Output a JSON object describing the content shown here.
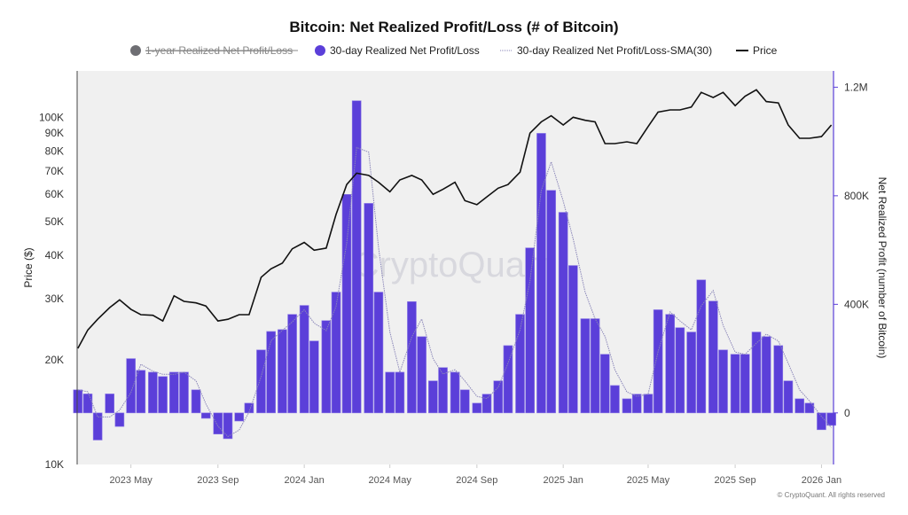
{
  "chart_data": {
    "type": "bar+line",
    "title": "Bitcoin: Net Realized Profit/Loss (# of Bitcoin)",
    "legend": {
      "placement": "top",
      "items": [
        {
          "label": "1-year Realized Net Profit/Loss",
          "color": "#6e6e73",
          "hidden": true
        },
        {
          "label": "30-day Realized Net Profit/Loss",
          "color": "#5b3fd9"
        },
        {
          "label": "30-day Realized Net Profit/Loss-SMA(30)",
          "color": "#8a86b8"
        },
        {
          "label": "Price",
          "color": "#111111"
        }
      ]
    },
    "ylabel_left": "Price ($)",
    "ylabel_right": "Net Realized Profit (number of Bitcoin)",
    "y_left": {
      "scale": "log",
      "range": [
        10000,
        136000
      ],
      "ticks": [
        10000,
        20000,
        30000,
        40000,
        50000,
        60000,
        70000,
        80000,
        90000,
        100000
      ],
      "tick_labels": [
        "10K",
        "20K",
        "30K",
        "40K",
        "50K",
        "60K",
        "70K",
        "80K",
        "90K",
        "100K"
      ]
    },
    "y_right": {
      "scale": "linear",
      "range": [
        -190000,
        1260000
      ],
      "ticks": [
        0,
        400000,
        800000,
        1200000
      ],
      "tick_labels": [
        "0",
        "400K",
        "800K",
        "1.2M"
      ]
    },
    "x_range": [
      "2023-02-14",
      "2026-01-18"
    ],
    "x_ticks": [
      "2023-05-01",
      "2023-09-01",
      "2024-01-01",
      "2024-05-01",
      "2024-09-01",
      "2025-01-01",
      "2025-05-01",
      "2025-09-01",
      "2026-01-01"
    ],
    "x_tick_labels": [
      "2023 May",
      "2023 Sep",
      "2024 Jan",
      "2024 May",
      "2024 Sep",
      "2025 Jan",
      "2025 May",
      "2025 Sep",
      "2026 Jan"
    ],
    "grid": false,
    "watermark": "CryptoQuant",
    "credit": "© CryptoQuant. All rights reserved",
    "dates": [
      "2023-02-15",
      "2023-03-01",
      "2023-03-15",
      "2023-04-01",
      "2023-04-15",
      "2023-05-01",
      "2023-05-15",
      "2023-06-01",
      "2023-06-15",
      "2023-07-01",
      "2023-07-15",
      "2023-08-01",
      "2023-08-15",
      "2023-09-01",
      "2023-09-15",
      "2023-10-01",
      "2023-10-15",
      "2023-11-01",
      "2023-11-15",
      "2023-12-01",
      "2023-12-15",
      "2024-01-01",
      "2024-01-15",
      "2024-02-01",
      "2024-02-15",
      "2024-03-01",
      "2024-03-15",
      "2024-04-01",
      "2024-04-15",
      "2024-05-01",
      "2024-05-15",
      "2024-06-01",
      "2024-06-15",
      "2024-07-01",
      "2024-07-15",
      "2024-08-01",
      "2024-08-15",
      "2024-09-01",
      "2024-09-15",
      "2024-10-01",
      "2024-10-15",
      "2024-11-01",
      "2024-11-15",
      "2024-12-01",
      "2024-12-15",
      "2025-01-01",
      "2025-01-15",
      "2025-02-01",
      "2025-02-15",
      "2025-03-01",
      "2025-03-15",
      "2025-04-01",
      "2025-04-15",
      "2025-05-01",
      "2025-05-15",
      "2025-06-01",
      "2025-06-15",
      "2025-07-01",
      "2025-07-15",
      "2025-08-01",
      "2025-08-15",
      "2025-09-01",
      "2025-09-15",
      "2025-10-01",
      "2025-10-15",
      "2025-11-01",
      "2025-11-15",
      "2025-12-01",
      "2025-12-15",
      "2026-01-01",
      "2026-01-15"
    ],
    "series": [
      {
        "name": "30-day Realized Net Profit/Loss",
        "type": "bar",
        "axis": "right",
        "values": [
          85000,
          70000,
          -100000,
          70000,
          -50000,
          200000,
          157000,
          150000,
          134000,
          150000,
          150000,
          85000,
          -20000,
          -78000,
          -95000,
          -30000,
          36000,
          232000,
          300000,
          307000,
          363000,
          396000,
          265000,
          340000,
          445000,
          805000,
          1150000,
          772000,
          445000,
          150000,
          150000,
          410000,
          281000,
          118000,
          167000,
          150000,
          85000,
          36000,
          69000,
          118000,
          248000,
          363000,
          608000,
          1030000,
          820000,
          739000,
          543000,
          347000,
          347000,
          216000,
          101000,
          52000,
          69000,
          69000,
          380000,
          363000,
          314000,
          298000,
          490000,
          412000,
          232000,
          216000,
          216000,
          298000,
          281000,
          248000,
          118000,
          52000,
          36000,
          -62000,
          -46000
        ]
      },
      {
        "name": "30-day Realized Net Profit/Loss-SMA(30)",
        "type": "line",
        "axis": "right",
        "values": [
          85000,
          78000,
          -15000,
          -15000,
          10000,
          75000,
          179000,
          154000,
          142000,
          142000,
          150000,
          118000,
          33000,
          -49000,
          -87000,
          -63000,
          3000,
          134000,
          266000,
          304000,
          335000,
          380000,
          331000,
          303000,
          393000,
          625000,
          978000,
          961000,
          609000,
          298000,
          150000,
          280000,
          346000,
          200000,
          143000,
          159000,
          118000,
          61000,
          53000,
          94000,
          183000,
          306000,
          486000,
          819000,
          925000,
          780000,
          641000,
          445000,
          347000,
          282000,
          159000,
          77000,
          61000,
          69000,
          225000,
          372000,
          339000,
          306000,
          394000,
          451000,
          322000,
          224000,
          216000,
          257000,
          290000,
          265000,
          183000,
          85000,
          44000,
          -13000,
          -54000
        ]
      },
      {
        "name": "Price",
        "type": "line",
        "axis": "left",
        "values": [
          21600,
          24400,
          26200,
          28300,
          29800,
          28000,
          27000,
          26900,
          25900,
          30600,
          29500,
          29200,
          28600,
          25900,
          26200,
          27000,
          27000,
          34600,
          36600,
          38000,
          41800,
          43600,
          41400,
          42000,
          52500,
          64000,
          69000,
          68000,
          65000,
          61000,
          66000,
          68000,
          66000,
          60000,
          62000,
          65000,
          57500,
          56000,
          59000,
          62500,
          64000,
          69500,
          90000,
          97000,
          101000,
          95000,
          100000,
          98000,
          97000,
          84000,
          84000,
          85000,
          84000,
          94000,
          103500,
          105000,
          105000,
          107000,
          118000,
          114000,
          118000,
          108000,
          115000,
          120000,
          111000,
          110000,
          95000,
          87000,
          87000,
          88000,
          95000
        ]
      }
    ]
  }
}
